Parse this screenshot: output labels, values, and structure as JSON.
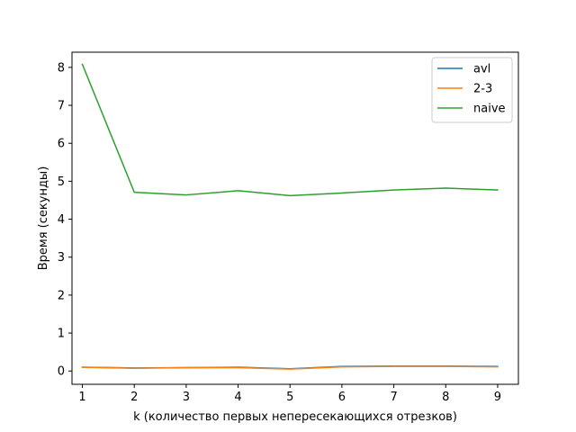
{
  "chart_data": {
    "type": "line",
    "xlabel": "k (количество первых непересекающихся отрезков)",
    "ylabel": "Время (секунды)",
    "xlim": [
      0.8,
      9.4
    ],
    "ylim": [
      -0.35,
      8.4
    ],
    "xticks": [
      1,
      2,
      3,
      4,
      5,
      6,
      7,
      8,
      9
    ],
    "yticks": [
      0,
      1,
      2,
      3,
      4,
      5,
      6,
      7,
      8
    ],
    "grid": false,
    "legend_position": "top-right",
    "x": [
      1,
      2,
      3,
      4,
      5,
      6,
      7,
      8,
      9
    ],
    "series": [
      {
        "name": "avl",
        "color": "#1f77b4",
        "values": [
          0.1,
          0.08,
          0.09,
          0.1,
          0.06,
          0.12,
          0.13,
          0.13,
          0.12
        ]
      },
      {
        "name": "2-3",
        "color": "#ff7f0e",
        "values": [
          0.1,
          0.07,
          0.09,
          0.09,
          0.05,
          0.11,
          0.12,
          0.12,
          0.11
        ]
      },
      {
        "name": "naive",
        "color": "#2ca02c",
        "values": [
          8.08,
          4.71,
          4.64,
          4.75,
          4.62,
          4.69,
          4.77,
          4.82,
          4.77
        ]
      }
    ]
  }
}
